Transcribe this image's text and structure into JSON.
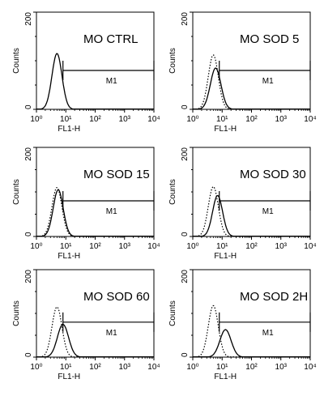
{
  "chart_data": [
    {
      "type": "histogram",
      "title": "MO CTRL",
      "xlabel": "FL1-H",
      "ylabel": "Counts",
      "xscale": "log",
      "xlim": [
        1,
        10000
      ],
      "ylim": [
        0,
        200
      ],
      "x_ticks": [
        "10⁰",
        "10¹",
        "10²",
        "10³",
        "10⁴"
      ],
      "y_ticks": [
        "0",
        "200"
      ],
      "gate": {
        "label": "M1",
        "range": [
          8,
          10000
        ]
      },
      "series": [
        {
          "style": "solid",
          "peak_x": 5,
          "peak_y": 115,
          "width": 0.17
        }
      ]
    },
    {
      "type": "histogram",
      "title": "MO SOD 5",
      "xlabel": "FL1-H",
      "ylabel": "Counts",
      "xscale": "log",
      "xlim": [
        1,
        10000
      ],
      "ylim": [
        0,
        200
      ],
      "x_ticks": [
        "10⁰",
        "10¹",
        "10²",
        "10³",
        "10⁴"
      ],
      "y_ticks": [
        "0",
        "200"
      ],
      "gate": {
        "label": "M1",
        "range": [
          8,
          10000
        ]
      },
      "series": [
        {
          "style": "dotted",
          "peak_x": 5,
          "peak_y": 112,
          "width": 0.17
        },
        {
          "style": "solid",
          "peak_x": 6,
          "peak_y": 85,
          "width": 0.18
        }
      ]
    },
    {
      "type": "histogram",
      "title": "MO SOD 15",
      "xlabel": "FL1-H",
      "ylabel": "Counts",
      "xscale": "log",
      "xlim": [
        1,
        10000
      ],
      "ylim": [
        0,
        200
      ],
      "x_ticks": [
        "10⁰",
        "10¹",
        "10²",
        "10³",
        "10⁴"
      ],
      "y_ticks": [
        "0",
        "200"
      ],
      "gate": {
        "label": "M1",
        "range": [
          8,
          10000
        ]
      },
      "series": [
        {
          "style": "dotted",
          "peak_x": 5,
          "peak_y": 110,
          "width": 0.17
        },
        {
          "style": "solid",
          "peak_x": 5.5,
          "peak_y": 105,
          "width": 0.17
        }
      ]
    },
    {
      "type": "histogram",
      "title": "MO SOD 30",
      "xlabel": "FL1-H",
      "ylabel": "Counts",
      "xscale": "log",
      "xlim": [
        1,
        10000
      ],
      "ylim": [
        0,
        200
      ],
      "x_ticks": [
        "10⁰",
        "10¹",
        "10²",
        "10³",
        "10⁴"
      ],
      "y_ticks": [
        "0",
        "200"
      ],
      "gate": {
        "label": "M1",
        "range": [
          8,
          10000
        ]
      },
      "series": [
        {
          "style": "dotted",
          "peak_x": 5,
          "peak_y": 112,
          "width": 0.17
        },
        {
          "style": "solid",
          "peak_x": 7,
          "peak_y": 92,
          "width": 0.17
        }
      ]
    },
    {
      "type": "histogram",
      "title": "MO SOD 60",
      "xlabel": "FL1-H",
      "ylabel": "Counts",
      "xscale": "log",
      "xlim": [
        1,
        10000
      ],
      "ylim": [
        0,
        200
      ],
      "x_ticks": [
        "10⁰",
        "10¹",
        "10²",
        "10³",
        "10⁴"
      ],
      "y_ticks": [
        "0",
        "200"
      ],
      "gate": {
        "label": "M1",
        "range": [
          8,
          10000
        ]
      },
      "series": [
        {
          "style": "dotted",
          "peak_x": 5,
          "peak_y": 115,
          "width": 0.17
        },
        {
          "style": "solid",
          "peak_x": 8,
          "peak_y": 75,
          "width": 0.19
        }
      ]
    },
    {
      "type": "histogram",
      "title": "MO SOD 2H",
      "xlabel": "FL1-H",
      "ylabel": "Counts",
      "xscale": "log",
      "xlim": [
        1,
        10000
      ],
      "ylim": [
        0,
        200
      ],
      "x_ticks": [
        "10⁰",
        "10¹",
        "10²",
        "10³",
        "10⁴"
      ],
      "y_ticks": [
        "0",
        "200"
      ],
      "gate": {
        "label": "M1",
        "range": [
          8,
          10000
        ]
      },
      "series": [
        {
          "style": "dotted",
          "peak_x": 5,
          "peak_y": 118,
          "width": 0.17
        },
        {
          "style": "solid",
          "peak_x": 13,
          "peak_y": 63,
          "width": 0.19
        }
      ]
    }
  ]
}
